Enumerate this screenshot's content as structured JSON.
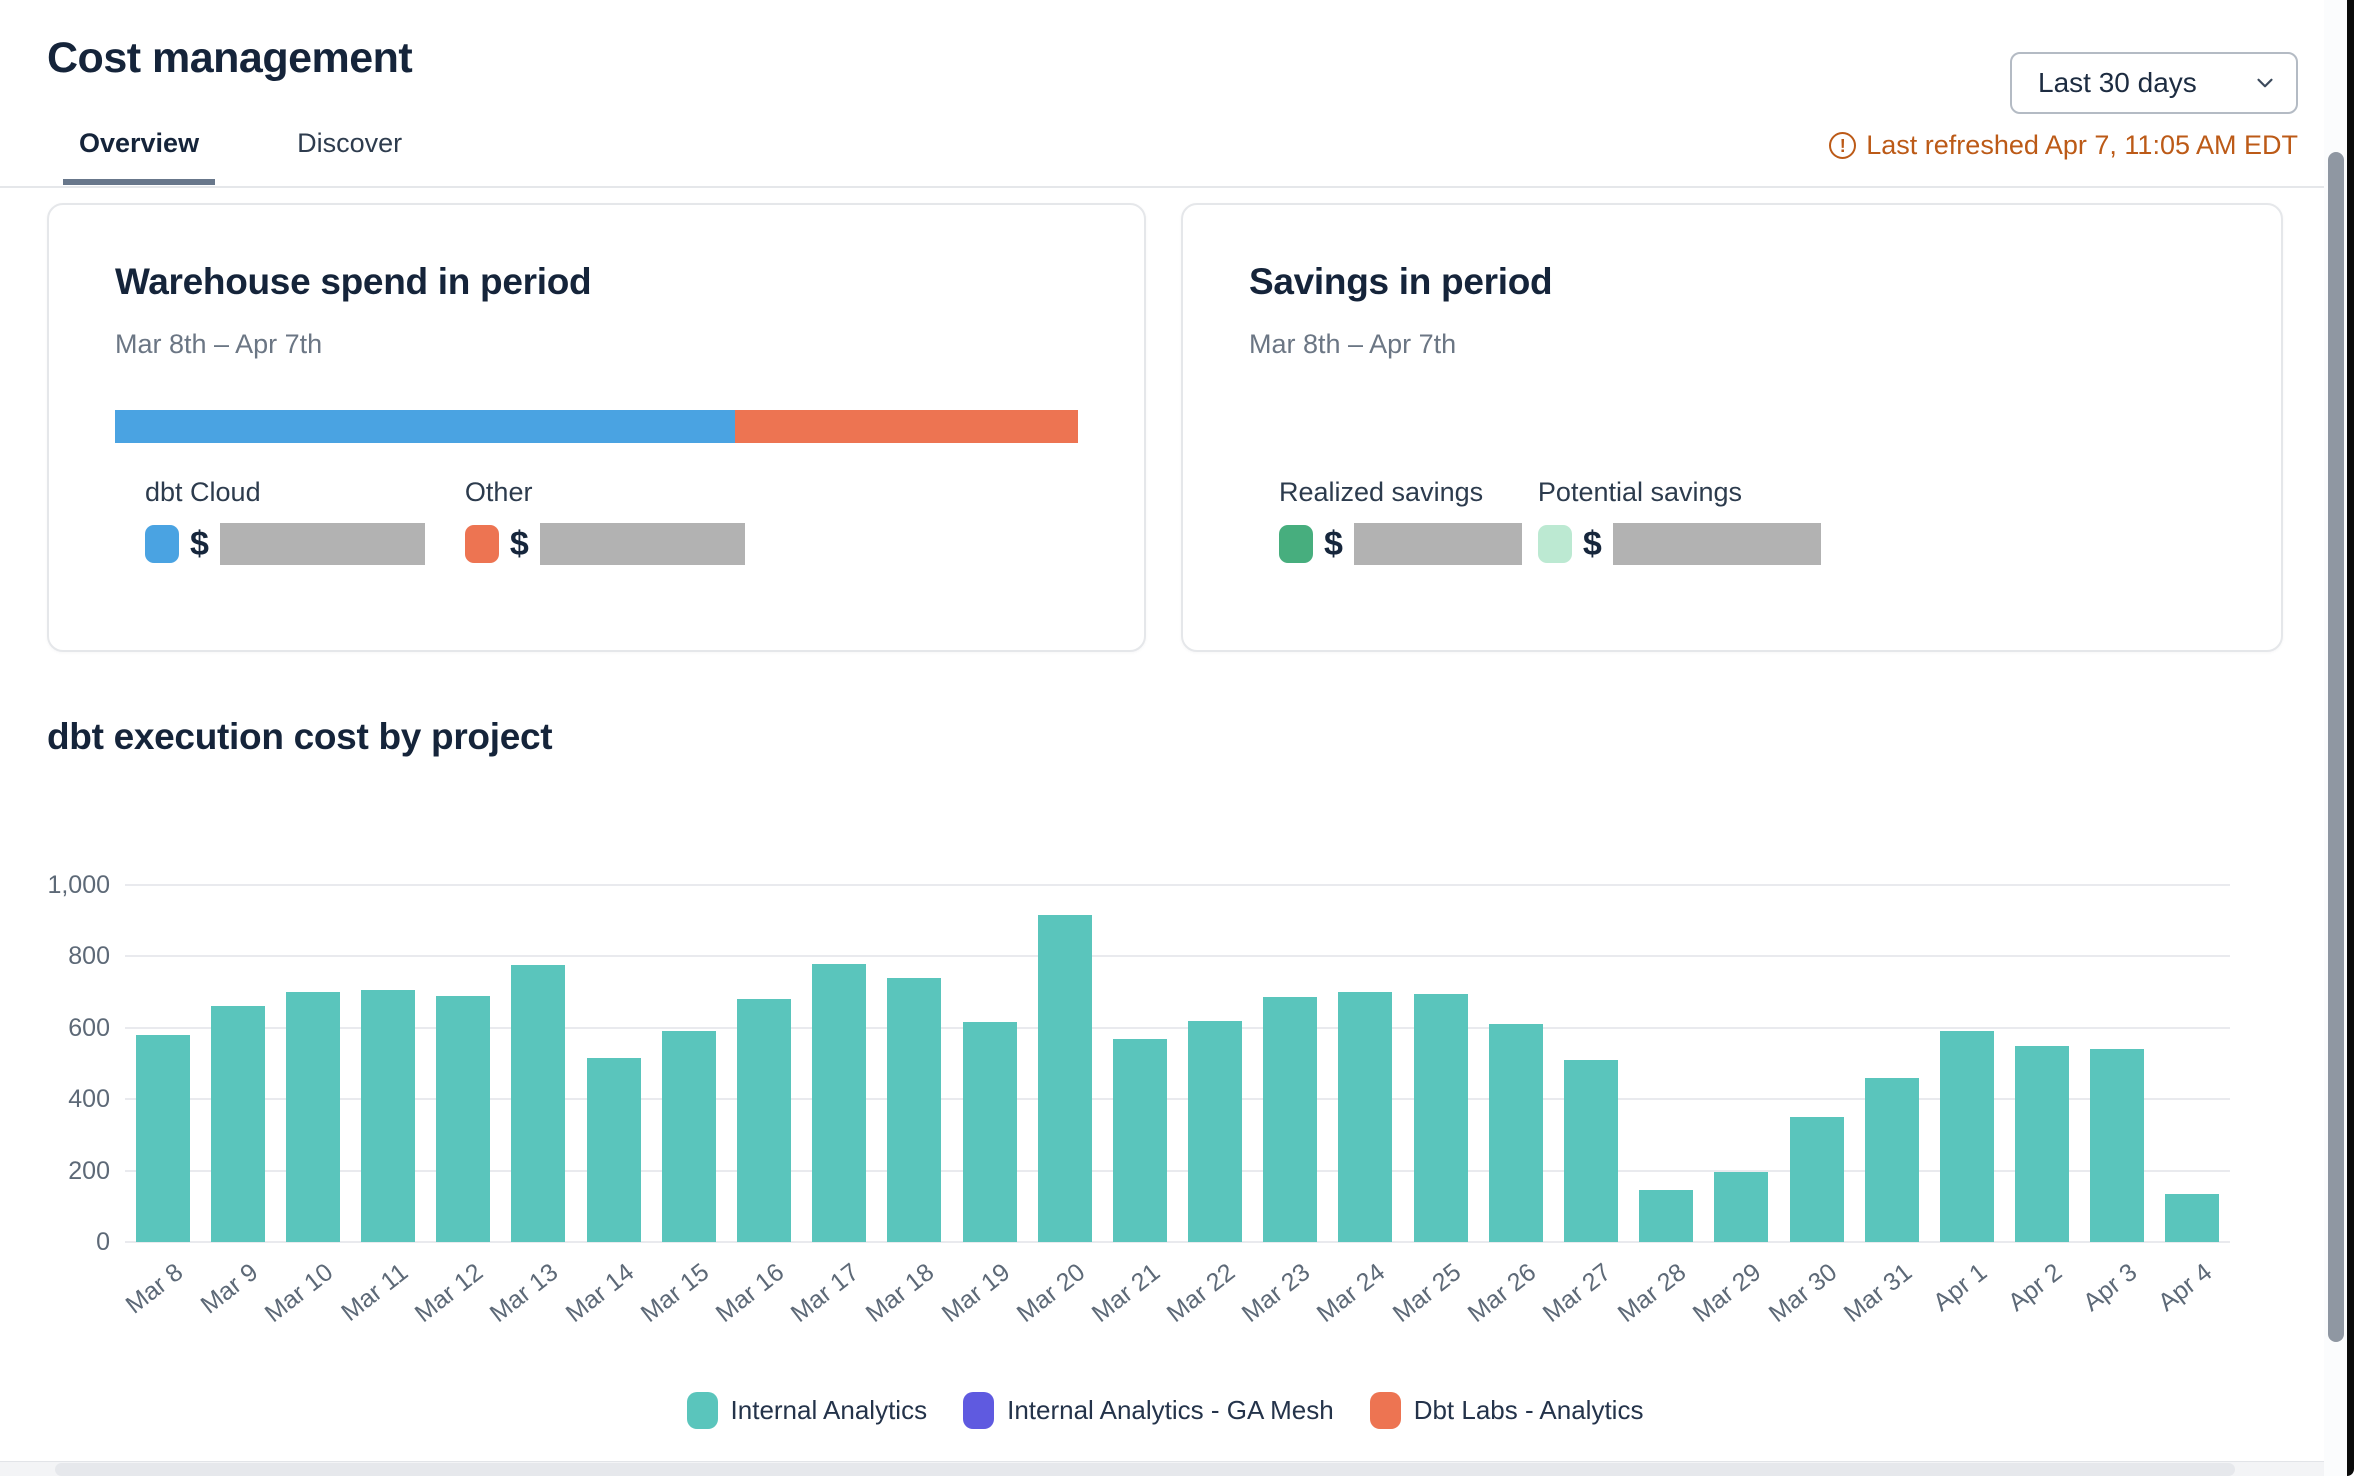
{
  "header": {
    "title": "Cost management",
    "tabs": [
      {
        "label": "Overview",
        "active": true
      },
      {
        "label": "Discover",
        "active": false
      }
    ],
    "date_range": {
      "value": "Last 30 days"
    },
    "last_refreshed": "Last refreshed Apr 7, 11:05 AM EDT"
  },
  "cards": {
    "warehouse_spend": {
      "title": "Warehouse spend in period",
      "subtitle": "Mar 8th – Apr 7th",
      "stacked_bar": {
        "segments": [
          {
            "label": "dbt Cloud",
            "color": "#4aa3e2",
            "percent": 64.4
          },
          {
            "label": "Other",
            "color": "#ed7452",
            "percent": 35.6
          }
        ]
      },
      "legend": [
        {
          "label": "dbt Cloud",
          "color": "#4aa3e2",
          "value_prefix": "$",
          "value_redacted": true
        },
        {
          "label": "Other",
          "color": "#ed7452",
          "value_prefix": "$",
          "value_redacted": true
        }
      ]
    },
    "savings": {
      "title": "Savings in period",
      "subtitle": "Mar 8th – Apr 7th",
      "legend": [
        {
          "label": "Realized savings",
          "color": "#47ae7e",
          "value_prefix": "$",
          "value_redacted": true
        },
        {
          "label": "Potential savings",
          "color": "#bce9d2",
          "value_prefix": "$",
          "value_redacted": true
        }
      ]
    }
  },
  "chart_data": {
    "type": "bar",
    "title": "dbt execution cost by project",
    "x": [
      "Mar 8",
      "Mar 9",
      "Mar 10",
      "Mar 11",
      "Mar 12",
      "Mar 13",
      "Mar 14",
      "Mar 15",
      "Mar 16",
      "Mar 17",
      "Mar 18",
      "Mar 19",
      "Mar 20",
      "Mar 21",
      "Mar 22",
      "Mar 23",
      "Mar 24",
      "Mar 25",
      "Mar 26",
      "Mar 27",
      "Mar 28",
      "Mar 29",
      "Mar 30",
      "Mar 31",
      "Apr 1",
      "Apr 2",
      "Apr 3",
      "Apr 4"
    ],
    "series": [
      {
        "name": "Internal Analytics",
        "color": "#5ac5bc",
        "values": [
          580,
          660,
          700,
          705,
          690,
          775,
          515,
          590,
          680,
          780,
          740,
          615,
          915,
          570,
          620,
          685,
          700,
          695,
          610,
          510,
          145,
          195,
          350,
          460,
          590,
          550,
          540,
          135
        ]
      },
      {
        "name": "Internal Analytics - GA Mesh",
        "color": "#5f5ae0",
        "values": [
          0,
          0,
          0,
          0,
          0,
          0,
          0,
          0,
          0,
          0,
          0,
          0,
          0,
          0,
          0,
          0,
          0,
          0,
          0,
          0,
          0,
          0,
          0,
          0,
          0,
          0,
          0,
          0
        ]
      },
      {
        "name": "Dbt Labs - Analytics",
        "color": "#ed7452",
        "values": [
          0,
          0,
          0,
          0,
          0,
          0,
          0,
          0,
          0,
          0,
          0,
          0,
          0,
          0,
          0,
          0,
          0,
          0,
          0,
          0,
          0,
          0,
          0,
          0,
          0,
          0,
          0,
          0
        ]
      }
    ],
    "ylim": [
      0,
      1000
    ],
    "yticks": [
      0,
      200,
      400,
      600,
      800,
      1000
    ],
    "ytick_labels": [
      "0",
      "200",
      "400",
      "600",
      "800",
      "1,000"
    ],
    "xlabel": "",
    "ylabel": "",
    "grid": true,
    "legend_position": "bottom"
  }
}
